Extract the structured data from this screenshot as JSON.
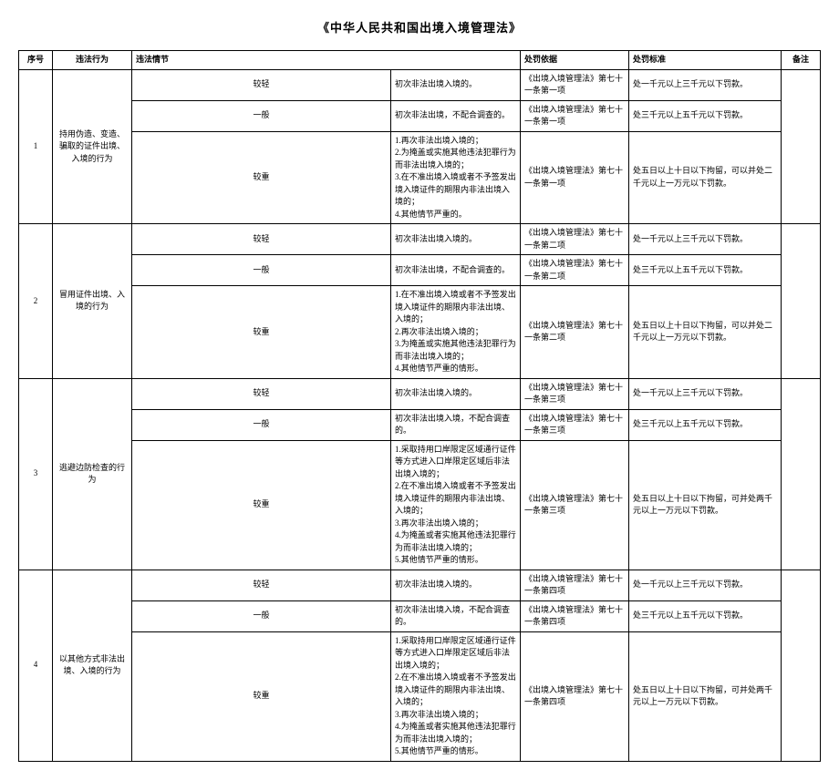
{
  "title": "《中华人民共和国出境入境管理法》",
  "headers": {
    "seq": "序号",
    "act": "违法行为",
    "circ": "违法情节",
    "basis": "处罚依据",
    "std": "处罚标准",
    "note": "备注"
  },
  "severity": {
    "qing": "较轻",
    "yiban": "一般",
    "zhong": "较重"
  },
  "rows": [
    {
      "seq": "1",
      "act": "持用伪造、变造、骗取的证件出境、入境的行为",
      "qing_circ": "初次非法出境入境的。",
      "qing_basis": "《出境入境管理法》第七十一条第一项",
      "qing_std": "处一千元以上三千元以下罚款。",
      "yiban_circ": "初次非法出境，不配合调查的。",
      "yiban_basis": "《出境入境管理法》第七十一条第一项",
      "yiban_std": "处三千元以上五千元以下罚款。",
      "zhong_circ": "1.再次非法出境入境的；\n2.为掩盖或实施其他违法犯罪行为而非法出境入境的；\n3.在不准出境入境或者不予签发出境入境证件的期限内非法出境入境的；\n4.其他情节严重的。",
      "zhong_basis": "《出境入境管理法》第七十一条第一项",
      "zhong_std": "处五日以上十日以下拘留，可以并处二千元以上一万元以下罚款。"
    },
    {
      "seq": "2",
      "act": "冒用证件出境、入境的行为",
      "qing_circ": "初次非法出境入境的。",
      "qing_basis": "《出境入境管理法》第七十一条第二项",
      "qing_std": "处一千元以上三千元以下罚款。",
      "yiban_circ": "初次非法出境，不配合调查的。",
      "yiban_basis": "《出境入境管理法》第七十一条第二项",
      "yiban_std": "处三千元以上五千元以下罚款。",
      "zhong_circ": "1.在不准出境入境或者不予签发出境入境证件的期限内非法出境、入境的；\n2.再次非法出境入境的；\n3.为掩盖或实施其他违法犯罪行为而非法出境入境的；\n4.其他情节严重的情形。",
      "zhong_basis": "《出境入境管理法》第七十一条第二项",
      "zhong_std": "处五日以上十日以下拘留，可以并处二千元以上一万元以下罚款。"
    },
    {
      "seq": "3",
      "act": "逃避边防检查的行为",
      "qing_circ": "初次非法出境入境的。",
      "qing_basis": "《出境入境管理法》第七十一条第三项",
      "qing_std": "处一千元以上三千元以下罚款。",
      "yiban_circ": "初次非法出境入境，不配合调查的。",
      "yiban_basis": "《出境入境管理法》第七十一条第三项",
      "yiban_std": "处三千元以上五千元以下罚款。",
      "zhong_circ": "1.采取持用口岸限定区域通行证件等方式进入口岸限定区域后非法出境入境的；\n2.在不准出境入境或者不予签发出境入境证件的期限内非法出境、入境的；\n3.再次非法出境入境的；\n4.为掩盖或者实施其他违法犯罪行为而非法出境入境的；\n5.其他情节严重的情形。",
      "zhong_basis": "《出境入境管理法》第七十一条第三项",
      "zhong_std": "处五日以上十日以下拘留，可并处两千元以上一万元以下罚款。"
    },
    {
      "seq": "4",
      "act": "以其他方式非法出境、入境的行为",
      "qing_circ": "初次非法出境入境的。",
      "qing_basis": "《出境入境管理法》第七十一条第四项",
      "qing_std": "处一千元以上三千元以下罚款。",
      "yiban_circ": "初次非法出境入境，不配合调查的。",
      "yiban_basis": "《出境入境管理法》第七十一条第四项",
      "yiban_std": "处三千元以上五千元以下罚款。",
      "zhong_circ": "1.采取持用口岸限定区域通行证件等方式进入口岸限定区域后非法出境入境的；\n2.在不准出境入境或者不予签发出境入境证件的期限内非法出境、入境的；\n3.再次非法出境入境的；\n4.为掩盖或者实施其他违法犯罪行为而非法出境入境的；\n5.其他情节严重的情形。",
      "zhong_basis": "《出境入境管理法》第七十一条第四项",
      "zhong_std": "处五日以上十日以下拘留，可并处两千元以上一万元以下罚款。"
    }
  ]
}
